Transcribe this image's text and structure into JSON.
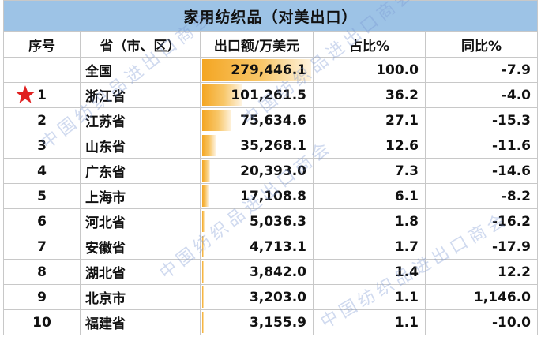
{
  "title": "家用纺织品（对美出口）",
  "headers": [
    "序号",
    "省（市、区）",
    "出口额/万美元",
    "占比%",
    "同比%"
  ],
  "rows": [
    {
      "rank": "",
      "province": "全国",
      "export": "279,446.1",
      "share": "100.0",
      "yoy": "-7.9",
      "export_value": 279446.1
    },
    {
      "rank": "1",
      "province": "浙江省",
      "export": "101,261.5",
      "share": "36.2",
      "yoy": "-4.0",
      "export_value": 101261.5
    },
    {
      "rank": "2",
      "province": "江苏省",
      "export": "75,634.6",
      "share": "27.1",
      "yoy": "-15.3",
      "export_value": 75634.6
    },
    {
      "rank": "3",
      "province": "山东省",
      "export": "35,268.1",
      "share": "12.6",
      "yoy": "-11.6",
      "export_value": 35268.1
    },
    {
      "rank": "4",
      "province": "广东省",
      "export": "20,393.0",
      "share": "7.3",
      "yoy": "-14.6",
      "export_value": 20393.0
    },
    {
      "rank": "5",
      "province": "上海市",
      "export": "17,108.8",
      "share": "6.1",
      "yoy": "-8.2",
      "export_value": 17108.8
    },
    {
      "rank": "6",
      "province": "河北省",
      "export": "5,036.3",
      "share": "1.8",
      "yoy": "-16.2",
      "export_value": 5036.3
    },
    {
      "rank": "7",
      "province": "安徽省",
      "export": "4,713.1",
      "share": "1.7",
      "yoy": "-17.9",
      "export_value": 4713.1
    },
    {
      "rank": "8",
      "province": "湖北省",
      "export": "3,842.0",
      "share": "1.4",
      "yoy": "12.2",
      "export_value": 3842.0
    },
    {
      "rank": "9",
      "province": "北京市",
      "export": "3,203.0",
      "share": "1.1",
      "yoy": "1,146.0",
      "export_value": 3203.0
    },
    {
      "rank": "10",
      "province": "福建省",
      "export": "3,155.9",
      "share": "1.1",
      "yoy": "-10.0",
      "export_value": 3155.9
    }
  ],
  "highlight_row": 1,
  "databar_color": "#f4a623",
  "header_bg": "#9dc3e6",
  "watermark": "中国纺织品进出口商会"
}
